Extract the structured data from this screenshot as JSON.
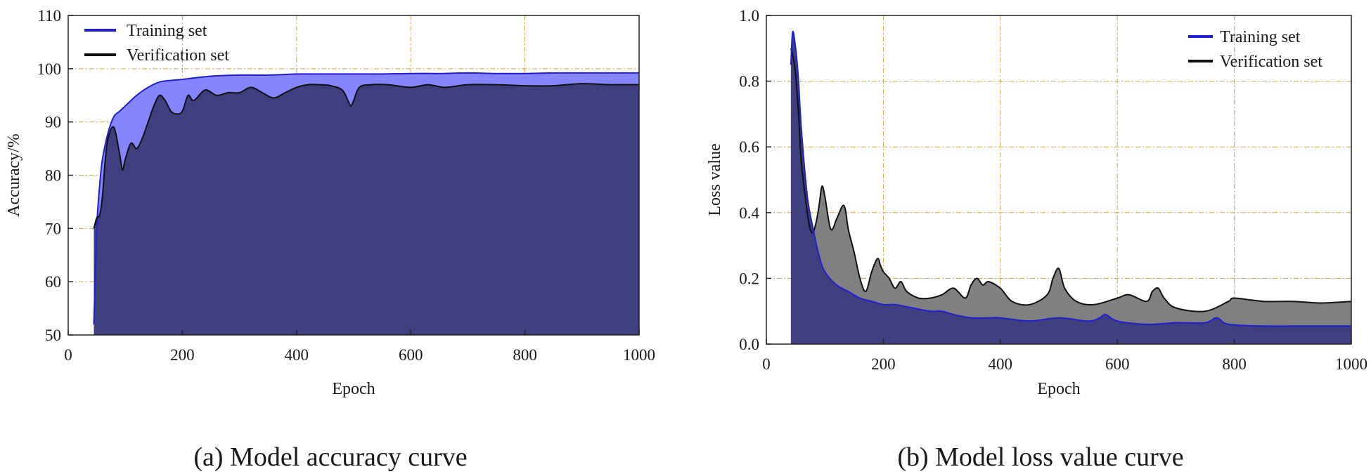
{
  "chart_data": [
    {
      "type": "area",
      "caption": "(a) Model accuracy curve",
      "xlabel": "Epoch",
      "ylabel": "Accuracy/%",
      "xlim": [
        0,
        1000
      ],
      "ylim": [
        50,
        110
      ],
      "xticks": [
        "0",
        "200",
        "400",
        "600",
        "800",
        "1000"
      ],
      "yticks": [
        "50",
        "60",
        "70",
        "80",
        "90",
        "100",
        "110"
      ],
      "grid": true,
      "legend_position": "top-left",
      "series": [
        {
          "name": "Training set",
          "line_color": "#1f1fd0",
          "fill_color": "#8585ff",
          "x": [
            45,
            50,
            55,
            60,
            70,
            80,
            90,
            100,
            120,
            140,
            160,
            180,
            200,
            250,
            300,
            350,
            400,
            450,
            500,
            550,
            600,
            650,
            700,
            750,
            800,
            850,
            900,
            950,
            1000
          ],
          "y": [
            52,
            70,
            78,
            83,
            88,
            91,
            92,
            93,
            95,
            96.5,
            97.5,
            97.8,
            98,
            98.6,
            98.8,
            98.8,
            99,
            99,
            99,
            99,
            99.1,
            99.1,
            99.2,
            99.1,
            99.1,
            99.2,
            99.2,
            99.2,
            99.2
          ]
        },
        {
          "name": "Verification set",
          "line_color": "#111111",
          "fill_color": "#3f3f80",
          "x": [
            45,
            50,
            55,
            60,
            65,
            70,
            80,
            90,
            95,
            100,
            110,
            120,
            130,
            140,
            150,
            160,
            170,
            180,
            190,
            200,
            210,
            220,
            240,
            260,
            280,
            300,
            320,
            340,
            360,
            380,
            400,
            420,
            440,
            460,
            480,
            490,
            495,
            500,
            510,
            530,
            560,
            600,
            630,
            660,
            700,
            750,
            800,
            850,
            900,
            950,
            1000
          ],
          "y": [
            70,
            72,
            72.5,
            76,
            83,
            87,
            89,
            84,
            81,
            83,
            86,
            85,
            87,
            90,
            93,
            95,
            94,
            92,
            91.5,
            92,
            95,
            94,
            96,
            95,
            95.5,
            95.5,
            96.5,
            95.5,
            94.5,
            95.5,
            96.5,
            97,
            97,
            96.8,
            96,
            94,
            93,
            94,
            96.5,
            97,
            97,
            96.5,
            97,
            96.5,
            97,
            97,
            96.8,
            96.8,
            97.2,
            97,
            97
          ]
        }
      ]
    },
    {
      "type": "area",
      "caption": "(b) Model loss value curve",
      "xlabel": "Epoch",
      "ylabel": "Loss value",
      "xlim": [
        0,
        1000
      ],
      "ylim": [
        0,
        1.0
      ],
      "xticks": [
        "0",
        "200",
        "400",
        "600",
        "800",
        "1000"
      ],
      "yticks": [
        "0.0",
        "0.2",
        "0.4",
        "0.6",
        "0.8",
        "1.0"
      ],
      "grid": true,
      "legend_position": "top-right",
      "series": [
        {
          "name": "Training set",
          "line_color": "#1f1fd0",
          "fill_color": "#3f3f80",
          "x": [
            42,
            45,
            50,
            55,
            60,
            70,
            80,
            90,
            100,
            120,
            140,
            160,
            180,
            200,
            220,
            250,
            280,
            300,
            320,
            350,
            380,
            400,
            450,
            500,
            550,
            570,
            580,
            600,
            650,
            700,
            750,
            770,
            790,
            850,
            900,
            950,
            1000
          ],
          "y": [
            0.85,
            0.95,
            0.9,
            0.8,
            0.65,
            0.45,
            0.35,
            0.27,
            0.22,
            0.18,
            0.16,
            0.14,
            0.13,
            0.12,
            0.12,
            0.11,
            0.1,
            0.1,
            0.09,
            0.08,
            0.08,
            0.08,
            0.07,
            0.08,
            0.07,
            0.08,
            0.09,
            0.07,
            0.06,
            0.065,
            0.065,
            0.08,
            0.06,
            0.055,
            0.055,
            0.055,
            0.055
          ]
        },
        {
          "name": "Verification set",
          "line_color": "#111111",
          "fill_color": "#808080",
          "x": [
            42,
            45,
            50,
            55,
            60,
            70,
            75,
            80,
            85,
            90,
            95,
            100,
            110,
            120,
            130,
            135,
            140,
            150,
            160,
            170,
            180,
            190,
            195,
            200,
            210,
            220,
            230,
            240,
            260,
            280,
            300,
            320,
            340,
            350,
            360,
            370,
            380,
            400,
            420,
            450,
            480,
            490,
            500,
            510,
            530,
            560,
            600,
            620,
            650,
            660,
            670,
            680,
            700,
            750,
            790,
            800,
            850,
            900,
            950,
            1000
          ],
          "y": [
            0.9,
            0.88,
            0.82,
            0.7,
            0.55,
            0.4,
            0.35,
            0.34,
            0.37,
            0.42,
            0.48,
            0.45,
            0.35,
            0.38,
            0.42,
            0.41,
            0.35,
            0.28,
            0.2,
            0.16,
            0.22,
            0.26,
            0.24,
            0.22,
            0.2,
            0.17,
            0.19,
            0.16,
            0.14,
            0.14,
            0.15,
            0.17,
            0.14,
            0.18,
            0.2,
            0.18,
            0.19,
            0.17,
            0.13,
            0.12,
            0.15,
            0.2,
            0.23,
            0.17,
            0.13,
            0.12,
            0.14,
            0.15,
            0.13,
            0.16,
            0.17,
            0.14,
            0.11,
            0.1,
            0.13,
            0.14,
            0.13,
            0.13,
            0.125,
            0.13
          ]
        }
      ]
    }
  ]
}
